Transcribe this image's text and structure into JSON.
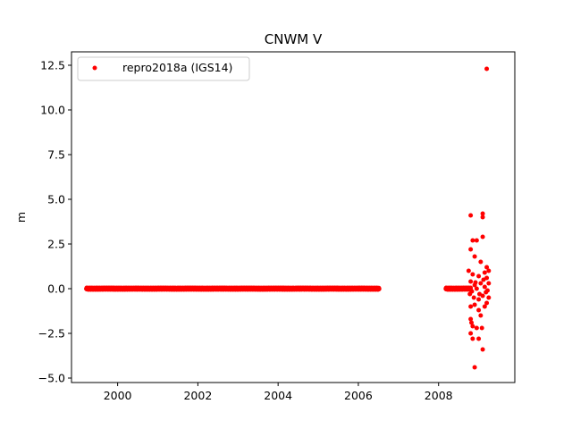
{
  "chart_data": {
    "type": "scatter",
    "title": "CNWM V",
    "xlabel": "",
    "ylabel": "m",
    "xlim": [
      1998.85,
      2009.9
    ],
    "ylim": [
      -5.25,
      13.25
    ],
    "xticks": [
      2000,
      2002,
      2004,
      2006,
      2008
    ],
    "xtick_labels": [
      "2000",
      "2002",
      "2004",
      "2006",
      "2008"
    ],
    "yticks": [
      -5.0,
      -2.5,
      0.0,
      2.5,
      5.0,
      7.5,
      10.0,
      12.5
    ],
    "ytick_labels": [
      "−5.0",
      "−2.5",
      "0.0",
      "2.5",
      "5.0",
      "7.5",
      "10.0",
      "12.5"
    ],
    "grid": false,
    "legend_position": "upper-left",
    "series": [
      {
        "name": "repro2018a (IGS14)",
        "color": "#ff0000",
        "marker": "circle",
        "dense_segments": [
          {
            "x_start": 1999.22,
            "x_end": 2006.52,
            "y": 0.0,
            "spread": 0.05
          },
          {
            "x_start": 2008.18,
            "x_end": 2008.8,
            "y": 0.0,
            "spread": 0.05
          }
        ],
        "points": [
          [
            2008.8,
            4.1
          ],
          [
            2009.1,
            4.2
          ],
          [
            2009.1,
            4.0
          ],
          [
            2008.85,
            2.7
          ],
          [
            2008.95,
            2.7
          ],
          [
            2009.1,
            2.9
          ],
          [
            2008.8,
            2.2
          ],
          [
            2008.9,
            1.8
          ],
          [
            2009.05,
            1.5
          ],
          [
            2009.2,
            1.2
          ],
          [
            2009.25,
            1.0
          ],
          [
            2009.15,
            0.9
          ],
          [
            2008.75,
            1.0
          ],
          [
            2008.85,
            0.8
          ],
          [
            2009.0,
            0.7
          ],
          [
            2009.2,
            0.6
          ],
          [
            2009.25,
            0.3
          ],
          [
            2008.8,
            0.4
          ],
          [
            2008.9,
            0.2
          ],
          [
            2009.05,
            0.3
          ],
          [
            2009.15,
            0.1
          ],
          [
            2008.78,
            -0.3
          ],
          [
            2008.88,
            -0.5
          ],
          [
            2009.0,
            -0.6
          ],
          [
            2009.1,
            -0.4
          ],
          [
            2009.2,
            -0.8
          ],
          [
            2009.25,
            -0.5
          ],
          [
            2008.8,
            -1.0
          ],
          [
            2008.9,
            -0.9
          ],
          [
            2009.0,
            -1.2
          ],
          [
            2009.05,
            -1.5
          ],
          [
            2009.15,
            -1.0
          ],
          [
            2008.8,
            -1.7
          ],
          [
            2008.82,
            -1.9
          ],
          [
            2008.85,
            -2.1
          ],
          [
            2008.95,
            -2.2
          ],
          [
            2009.08,
            -2.2
          ],
          [
            2008.8,
            -2.5
          ],
          [
            2008.85,
            -2.8
          ],
          [
            2009.0,
            -2.8
          ],
          [
            2009.1,
            -3.4
          ],
          [
            2008.9,
            -4.4
          ],
          [
            2009.2,
            12.3
          ],
          [
            2009.22,
            -0.1
          ],
          [
            2008.95,
            0.0
          ],
          [
            2009.12,
            0.5
          ],
          [
            2008.92,
            0.35
          ],
          [
            2009.18,
            -0.2
          ],
          [
            2008.83,
            -0.15
          ],
          [
            2009.02,
            -0.3
          ]
        ]
      }
    ]
  }
}
